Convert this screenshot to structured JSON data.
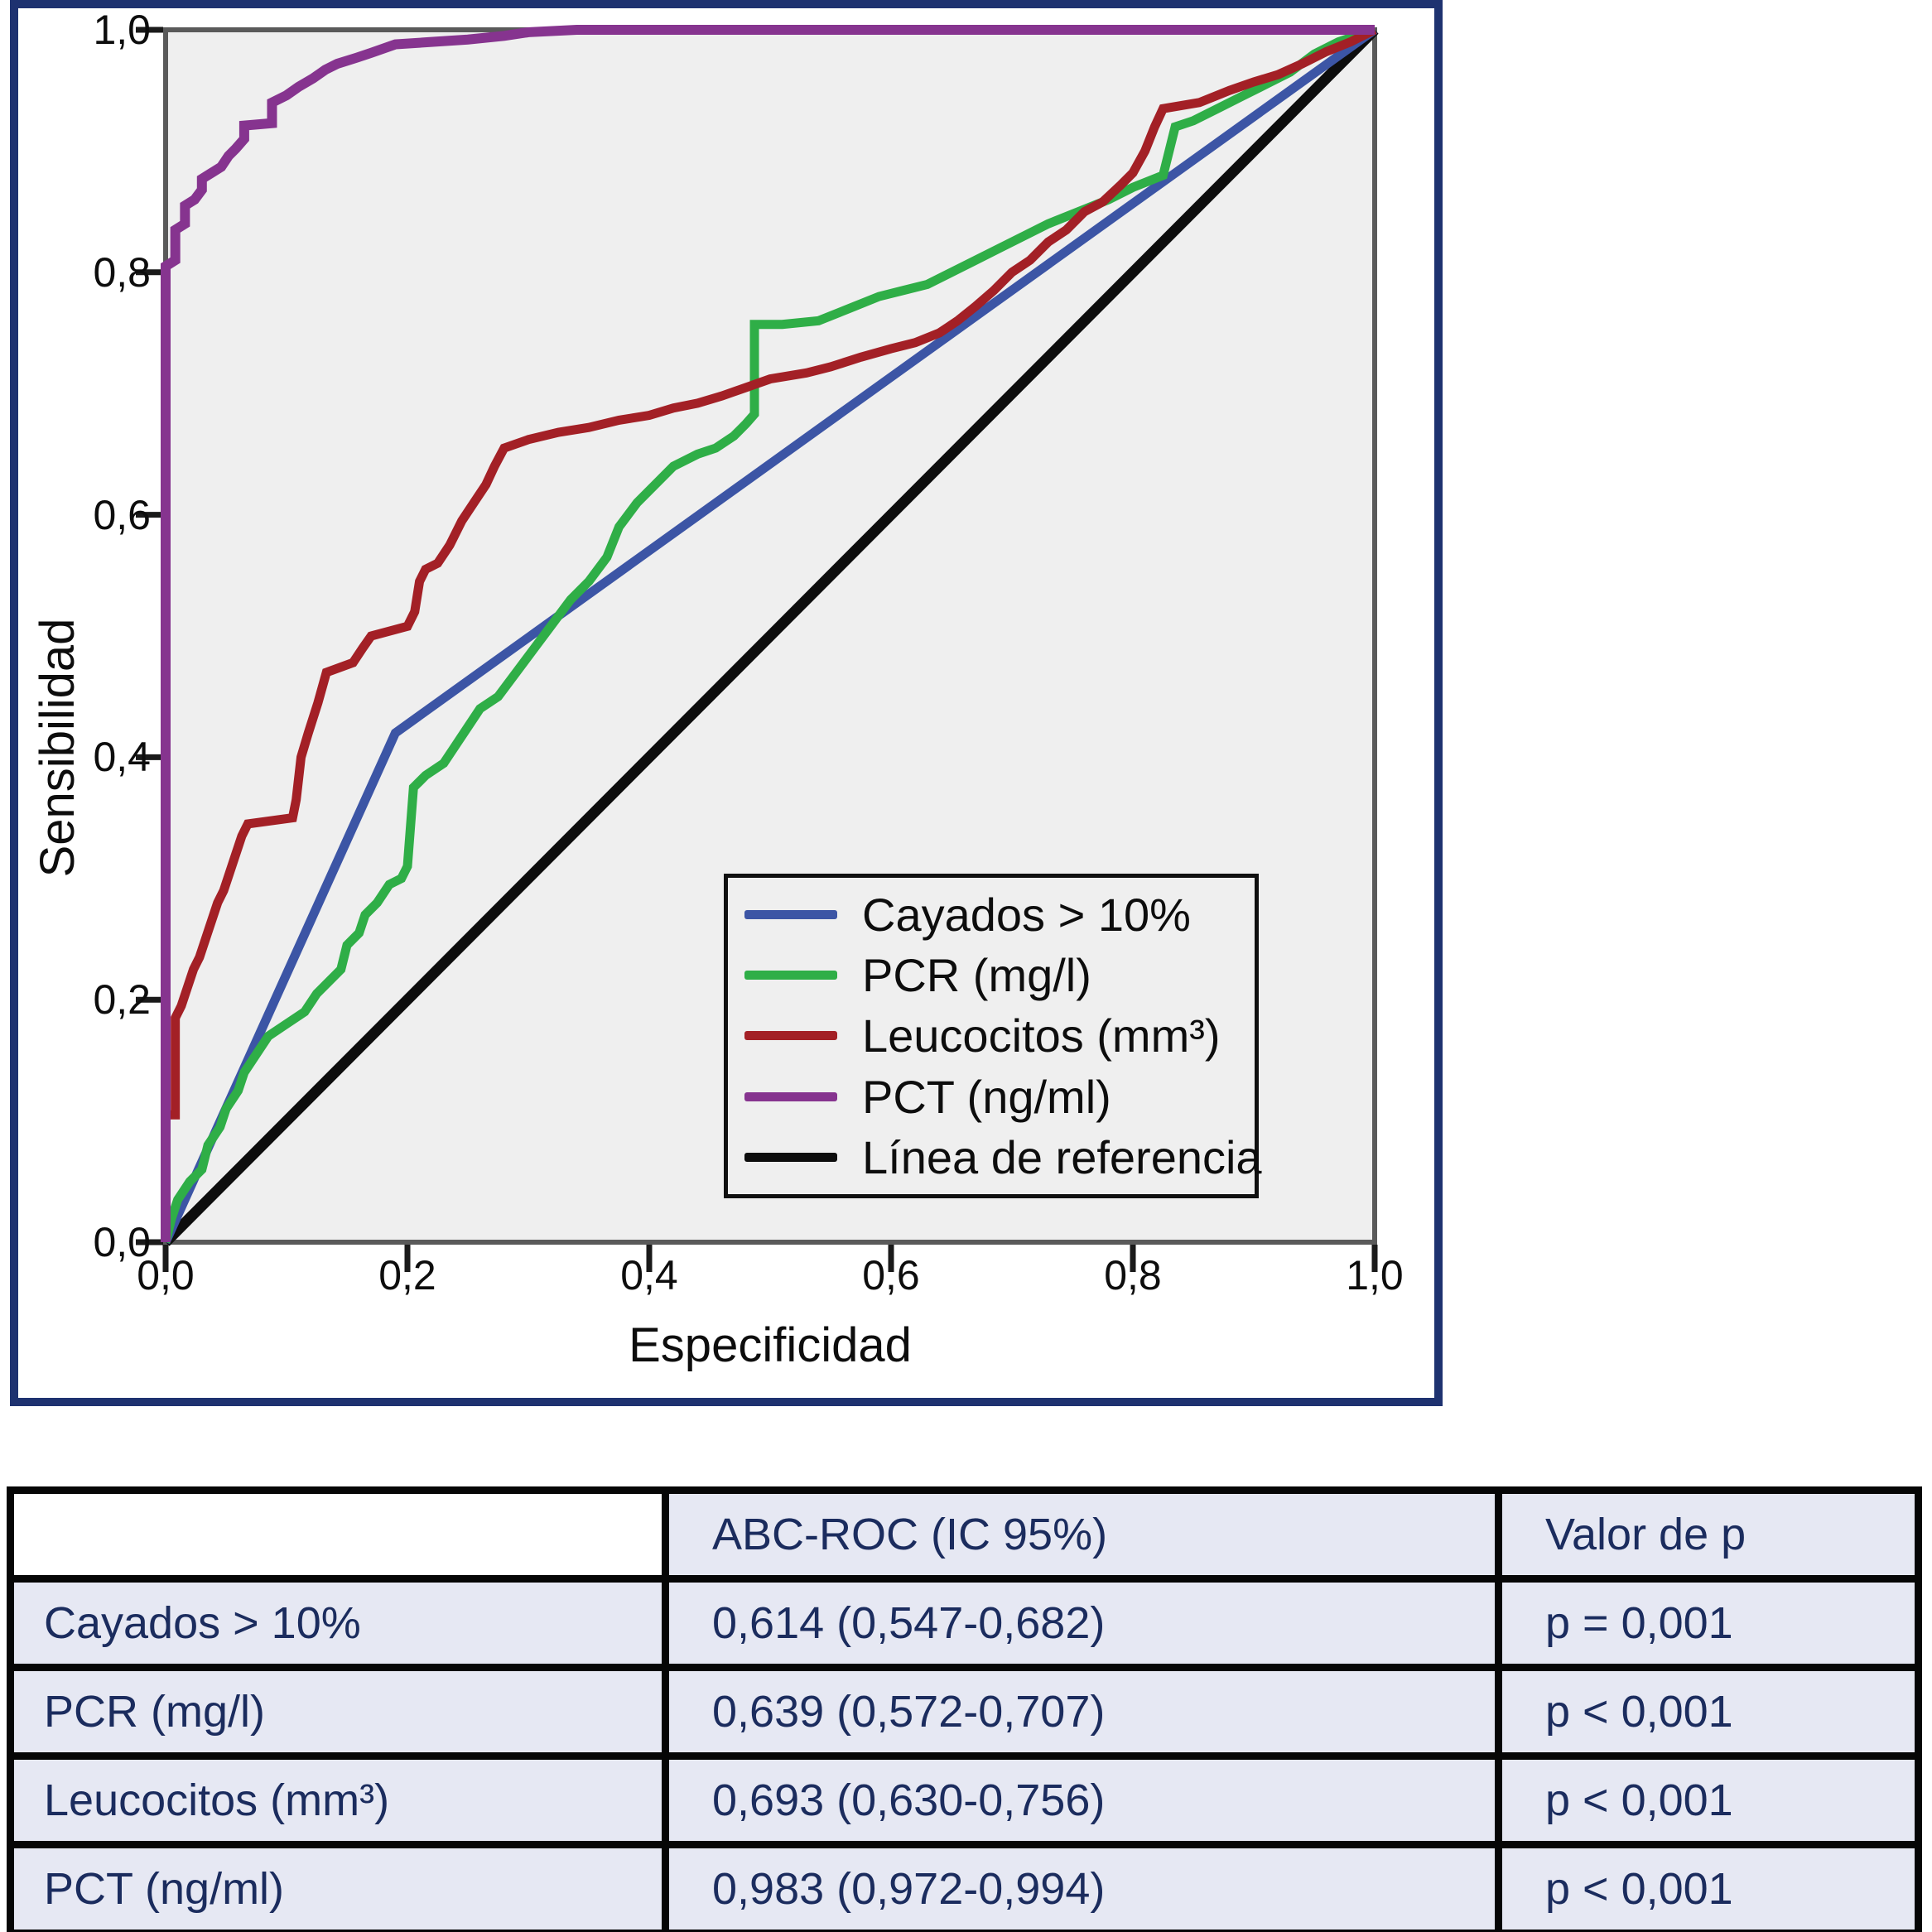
{
  "figure": {
    "frame_color": "#1e3270",
    "plot_bg": "#efefef",
    "plot_border_color": "#5a5a5a",
    "tick_color": "#1a1a1a"
  },
  "chart_data": {
    "type": "line",
    "subtype": "roc-curves",
    "title": "",
    "xlabel": "Especificidad",
    "ylabel": "Sensibilidad",
    "xlim": [
      0,
      1
    ],
    "ylim": [
      0,
      1
    ],
    "x_ticks": [
      0,
      0.2,
      0.4,
      0.6,
      0.8,
      1.0
    ],
    "y_ticks": [
      0,
      0.2,
      0.4,
      0.6,
      0.8,
      1.0
    ],
    "x_tick_labels": [
      "0,0",
      "0,2",
      "0,4",
      "0,6",
      "0,8",
      "1,0"
    ],
    "y_tick_labels": [
      "0,0",
      "0,2",
      "0,4",
      "0,6",
      "0,8",
      "1,0"
    ],
    "grid": false,
    "legend_position": "inside-lower-right",
    "series": [
      {
        "name": "Cayados > 10%",
        "slug": "cayados",
        "color": "#3c55a5",
        "width": 11,
        "points": [
          [
            0,
            0
          ],
          [
            0.19,
            0.42
          ],
          [
            1,
            1
          ]
        ]
      },
      {
        "name": "PCR (mg/l)",
        "slug": "pcr",
        "color": "#2fae47",
        "width": 11,
        "points": [
          [
            0,
            0
          ],
          [
            0.005,
            0.02
          ],
          [
            0.01,
            0.035
          ],
          [
            0.02,
            0.05
          ],
          [
            0.03,
            0.06
          ],
          [
            0.035,
            0.08
          ],
          [
            0.045,
            0.095
          ],
          [
            0.05,
            0.11
          ],
          [
            0.06,
            0.125
          ],
          [
            0.065,
            0.14
          ],
          [
            0.075,
            0.155
          ],
          [
            0.085,
            0.17
          ],
          [
            0.1,
            0.18
          ],
          [
            0.115,
            0.19
          ],
          [
            0.125,
            0.205
          ],
          [
            0.135,
            0.215
          ],
          [
            0.145,
            0.225
          ],
          [
            0.15,
            0.245
          ],
          [
            0.16,
            0.255
          ],
          [
            0.165,
            0.27
          ],
          [
            0.175,
            0.28
          ],
          [
            0.185,
            0.295
          ],
          [
            0.195,
            0.3
          ],
          [
            0.2,
            0.31
          ],
          [
            0.205,
            0.375
          ],
          [
            0.215,
            0.385
          ],
          [
            0.23,
            0.395
          ],
          [
            0.24,
            0.41
          ],
          [
            0.25,
            0.425
          ],
          [
            0.26,
            0.44
          ],
          [
            0.275,
            0.45
          ],
          [
            0.29,
            0.47
          ],
          [
            0.305,
            0.49
          ],
          [
            0.32,
            0.51
          ],
          [
            0.335,
            0.53
          ],
          [
            0.35,
            0.545
          ],
          [
            0.365,
            0.565
          ],
          [
            0.375,
            0.59
          ],
          [
            0.39,
            0.61
          ],
          [
            0.405,
            0.625
          ],
          [
            0.42,
            0.64
          ],
          [
            0.44,
            0.65
          ],
          [
            0.455,
            0.655
          ],
          [
            0.47,
            0.665
          ],
          [
            0.48,
            0.675
          ],
          [
            0.487,
            0.683
          ],
          [
            0.487,
            0.757
          ],
          [
            0.51,
            0.757
          ],
          [
            0.54,
            0.76
          ],
          [
            0.565,
            0.77
          ],
          [
            0.59,
            0.78
          ],
          [
            0.61,
            0.785
          ],
          [
            0.63,
            0.79
          ],
          [
            0.65,
            0.8
          ],
          [
            0.67,
            0.81
          ],
          [
            0.69,
            0.82
          ],
          [
            0.71,
            0.83
          ],
          [
            0.73,
            0.84
          ],
          [
            0.755,
            0.85
          ],
          [
            0.78,
            0.86
          ],
          [
            0.8,
            0.87
          ],
          [
            0.825,
            0.88
          ],
          [
            0.83,
            0.9
          ],
          [
            0.835,
            0.92
          ],
          [
            0.85,
            0.925
          ],
          [
            0.87,
            0.935
          ],
          [
            0.89,
            0.945
          ],
          [
            0.91,
            0.955
          ],
          [
            0.93,
            0.965
          ],
          [
            0.95,
            0.98
          ],
          [
            0.97,
            0.99
          ],
          [
            1,
            1
          ]
        ]
      },
      {
        "name": "Leucocitos (mm³)",
        "slug": "leucocitos",
        "color": "#a32026",
        "width": 11,
        "points": [
          [
            0,
            0
          ],
          [
            0,
            0.105
          ],
          [
            0.008,
            0.105
          ],
          [
            0.008,
            0.185
          ],
          [
            0.013,
            0.195
          ],
          [
            0.018,
            0.21
          ],
          [
            0.023,
            0.225
          ],
          [
            0.028,
            0.235
          ],
          [
            0.033,
            0.25
          ],
          [
            0.038,
            0.265
          ],
          [
            0.043,
            0.28
          ],
          [
            0.048,
            0.29
          ],
          [
            0.053,
            0.305
          ],
          [
            0.058,
            0.32
          ],
          [
            0.063,
            0.335
          ],
          [
            0.068,
            0.345
          ],
          [
            0.105,
            0.35
          ],
          [
            0.108,
            0.365
          ],
          [
            0.112,
            0.4
          ],
          [
            0.118,
            0.42
          ],
          [
            0.126,
            0.445
          ],
          [
            0.133,
            0.47
          ],
          [
            0.155,
            0.478
          ],
          [
            0.163,
            0.49
          ],
          [
            0.17,
            0.5
          ],
          [
            0.2,
            0.508
          ],
          [
            0.206,
            0.52
          ],
          [
            0.21,
            0.545
          ],
          [
            0.215,
            0.555
          ],
          [
            0.225,
            0.56
          ],
          [
            0.235,
            0.575
          ],
          [
            0.245,
            0.595
          ],
          [
            0.255,
            0.61
          ],
          [
            0.265,
            0.625
          ],
          [
            0.272,
            0.64
          ],
          [
            0.28,
            0.655
          ],
          [
            0.3,
            0.662
          ],
          [
            0.325,
            0.668
          ],
          [
            0.35,
            0.672
          ],
          [
            0.375,
            0.678
          ],
          [
            0.4,
            0.682
          ],
          [
            0.42,
            0.688
          ],
          [
            0.44,
            0.692
          ],
          [
            0.46,
            0.698
          ],
          [
            0.48,
            0.705
          ],
          [
            0.5,
            0.712
          ],
          [
            0.53,
            0.717
          ],
          [
            0.55,
            0.722
          ],
          [
            0.575,
            0.73
          ],
          [
            0.6,
            0.737
          ],
          [
            0.62,
            0.742
          ],
          [
            0.64,
            0.75
          ],
          [
            0.655,
            0.76
          ],
          [
            0.67,
            0.772
          ],
          [
            0.685,
            0.785
          ],
          [
            0.7,
            0.8
          ],
          [
            0.715,
            0.81
          ],
          [
            0.73,
            0.825
          ],
          [
            0.745,
            0.835
          ],
          [
            0.76,
            0.85
          ],
          [
            0.775,
            0.858
          ],
          [
            0.79,
            0.872
          ],
          [
            0.8,
            0.882
          ],
          [
            0.81,
            0.9
          ],
          [
            0.818,
            0.92
          ],
          [
            0.825,
            0.935
          ],
          [
            0.855,
            0.94
          ],
          [
            0.88,
            0.95
          ],
          [
            0.9,
            0.957
          ],
          [
            0.92,
            0.963
          ],
          [
            0.94,
            0.972
          ],
          [
            0.96,
            0.982
          ],
          [
            0.98,
            0.99
          ],
          [
            1,
            1
          ]
        ]
      },
      {
        "name": "PCT (ng/ml)",
        "slug": "pct",
        "color": "#86348f",
        "width": 12,
        "points": [
          [
            0,
            0
          ],
          [
            0,
            0.805
          ],
          [
            0.008,
            0.81
          ],
          [
            0.008,
            0.835
          ],
          [
            0.016,
            0.84
          ],
          [
            0.016,
            0.855
          ],
          [
            0.024,
            0.86
          ],
          [
            0.03,
            0.868
          ],
          [
            0.03,
            0.877
          ],
          [
            0.038,
            0.882
          ],
          [
            0.046,
            0.887
          ],
          [
            0.052,
            0.896
          ],
          [
            0.058,
            0.902
          ],
          [
            0.065,
            0.91
          ],
          [
            0.065,
            0.921
          ],
          [
            0.088,
            0.923
          ],
          [
            0.088,
            0.94
          ],
          [
            0.1,
            0.946
          ],
          [
            0.11,
            0.953
          ],
          [
            0.122,
            0.96
          ],
          [
            0.132,
            0.967
          ],
          [
            0.142,
            0.972
          ],
          [
            0.158,
            0.977
          ],
          [
            0.17,
            0.981
          ],
          [
            0.19,
            0.988
          ],
          [
            0.22,
            0.99
          ],
          [
            0.25,
            0.992
          ],
          [
            0.28,
            0.995
          ],
          [
            0.3,
            0.998
          ],
          [
            0.34,
            1.0
          ],
          [
            1,
            1
          ]
        ]
      },
      {
        "name": "Línea de referencia",
        "slug": "referencia",
        "color": "#0d0d0d",
        "width": 13,
        "points": [
          [
            0,
            0
          ],
          [
            1,
            1
          ]
        ]
      }
    ]
  },
  "table": {
    "headers": [
      "",
      "ABC-ROC (IC 95%)",
      "Valor de p"
    ],
    "rows": [
      {
        "label": "Cayados > 10%",
        "auc_ci": "0,614 (0,547-0,682)",
        "p_value": "p = 0,001"
      },
      {
        "label": "PCR (mg/l)",
        "auc_ci": "0,639 (0,572-0,707)",
        "p_value": "p < 0,001"
      },
      {
        "label": "Leucocitos (mm³)",
        "auc_ci": "0,693 (0,630-0,756)",
        "p_value": "p < 0,001"
      },
      {
        "label": "PCT (ng/ml)",
        "auc_ci": "0,983 (0,972-0,994)",
        "p_value": "p < 0,001"
      }
    ],
    "colors": {
      "cell_bg": "#e6e8f3",
      "text": "#1b2c5e",
      "border": "#060606",
      "header_first_cell_bg": "#ffffff"
    }
  }
}
